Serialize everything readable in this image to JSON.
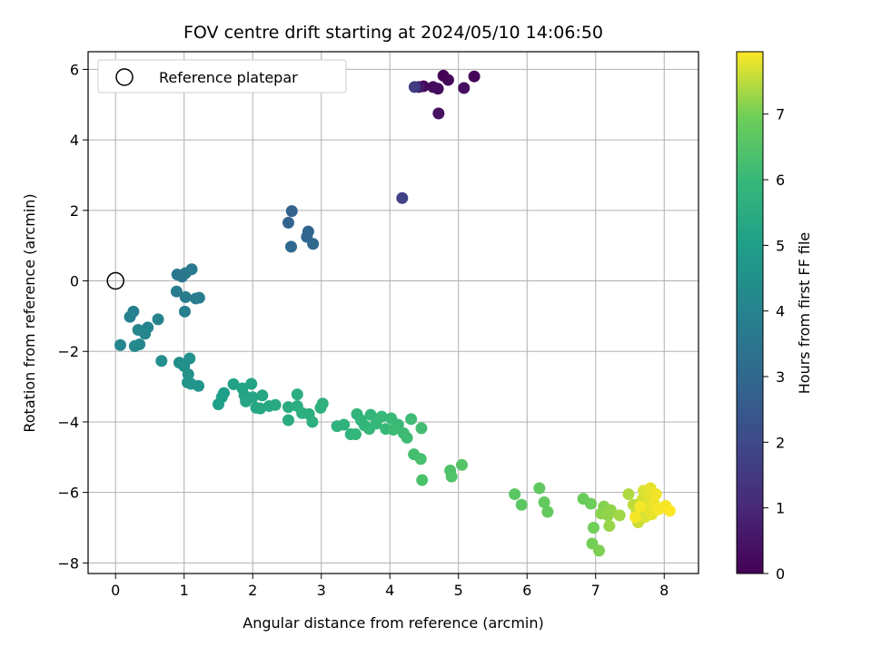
{
  "chart_data": {
    "type": "scatter",
    "title": "FOV centre drift starting at 2024/05/10 14:06:50",
    "xlabel": "Angular distance from reference (arcmin)",
    "ylabel": "Rotation from reference (arcmin)",
    "xlim": [
      -0.4,
      8.5
    ],
    "ylim": [
      -8.3,
      6.5
    ],
    "xticks": [
      0,
      1,
      2,
      3,
      4,
      5,
      6,
      7,
      8
    ],
    "yticks": [
      -8,
      -6,
      -4,
      -2,
      0,
      2,
      4,
      6
    ],
    "grid": true,
    "legend": {
      "position": "upper-left",
      "label": "Reference platepar"
    },
    "reference_point": {
      "x": 0.0,
      "y": 0.0
    },
    "colorbar": {
      "label": "Hours from first FF file",
      "colormap": "viridis",
      "range": [
        0,
        7.95
      ],
      "ticks": [
        0,
        1,
        2,
        3,
        4,
        5,
        6,
        7
      ]
    },
    "points": [
      {
        "x": 4.78,
        "y": 5.82,
        "t": 0.05
      },
      {
        "x": 5.23,
        "y": 5.8,
        "t": 0.1
      },
      {
        "x": 4.85,
        "y": 5.7,
        "t": 0.15
      },
      {
        "x": 4.49,
        "y": 5.52,
        "t": 0.2
      },
      {
        "x": 4.63,
        "y": 5.5,
        "t": 0.25
      },
      {
        "x": 4.7,
        "y": 5.45,
        "t": 0.3
      },
      {
        "x": 5.08,
        "y": 5.47,
        "t": 0.35
      },
      {
        "x": 4.42,
        "y": 5.5,
        "t": 0.6
      },
      {
        "x": 4.71,
        "y": 4.75,
        "t": 0.4
      },
      {
        "x": 4.36,
        "y": 5.5,
        "t": 1.6
      },
      {
        "x": 4.18,
        "y": 2.35,
        "t": 1.8
      },
      {
        "x": 2.57,
        "y": 1.98,
        "t": 2.8
      },
      {
        "x": 2.52,
        "y": 1.65,
        "t": 2.85
      },
      {
        "x": 2.81,
        "y": 1.4,
        "t": 2.9
      },
      {
        "x": 2.79,
        "y": 1.25,
        "t": 2.95
      },
      {
        "x": 2.88,
        "y": 1.05,
        "t": 3.0
      },
      {
        "x": 2.56,
        "y": 0.97,
        "t": 3.05
      },
      {
        "x": 0.9,
        "y": 0.18,
        "t": 3.5
      },
      {
        "x": 0.97,
        "y": 0.12,
        "t": 3.55
      },
      {
        "x": 1.02,
        "y": 0.22,
        "t": 3.6
      },
      {
        "x": 1.11,
        "y": 0.33,
        "t": 3.65
      },
      {
        "x": 0.89,
        "y": -0.3,
        "t": 3.7
      },
      {
        "x": 1.02,
        "y": -0.46,
        "t": 3.75
      },
      {
        "x": 1.17,
        "y": -0.5,
        "t": 3.8
      },
      {
        "x": 1.22,
        "y": -0.48,
        "t": 3.8
      },
      {
        "x": 1.01,
        "y": -0.87,
        "t": 3.85
      },
      {
        "x": 0.26,
        "y": -0.87,
        "t": 3.9
      },
      {
        "x": 0.21,
        "y": -1.02,
        "t": 3.95
      },
      {
        "x": 0.62,
        "y": -1.09,
        "t": 4.0
      },
      {
        "x": 0.47,
        "y": -1.32,
        "t": 4.05
      },
      {
        "x": 0.33,
        "y": -1.39,
        "t": 4.1
      },
      {
        "x": 0.43,
        "y": -1.5,
        "t": 4.1
      },
      {
        "x": 0.07,
        "y": -1.82,
        "t": 4.15
      },
      {
        "x": 0.28,
        "y": -1.85,
        "t": 4.2
      },
      {
        "x": 0.35,
        "y": -1.8,
        "t": 4.2
      },
      {
        "x": 0.67,
        "y": -2.27,
        "t": 4.4
      },
      {
        "x": 0.93,
        "y": -2.32,
        "t": 4.45
      },
      {
        "x": 1.08,
        "y": -2.2,
        "t": 4.5
      },
      {
        "x": 1.0,
        "y": -2.42,
        "t": 4.5
      },
      {
        "x": 1.06,
        "y": -2.65,
        "t": 4.55
      },
      {
        "x": 1.05,
        "y": -2.88,
        "t": 4.6
      },
      {
        "x": 1.1,
        "y": -2.92,
        "t": 4.6
      },
      {
        "x": 1.21,
        "y": -2.98,
        "t": 4.65
      },
      {
        "x": 1.72,
        "y": -2.93,
        "t": 5.1
      },
      {
        "x": 1.85,
        "y": -3.05,
        "t": 5.15
      },
      {
        "x": 1.98,
        "y": -2.92,
        "t": 5.2
      },
      {
        "x": 1.58,
        "y": -3.18,
        "t": 5.0
      },
      {
        "x": 1.55,
        "y": -3.3,
        "t": 5.0
      },
      {
        "x": 1.5,
        "y": -3.5,
        "t": 5.0
      },
      {
        "x": 1.88,
        "y": -3.25,
        "t": 5.2
      },
      {
        "x": 2.0,
        "y": -3.3,
        "t": 5.25
      },
      {
        "x": 1.9,
        "y": -3.42,
        "t": 5.25
      },
      {
        "x": 2.14,
        "y": -3.25,
        "t": 5.3
      },
      {
        "x": 2.05,
        "y": -3.6,
        "t": 5.3
      },
      {
        "x": 2.11,
        "y": -3.62,
        "t": 5.35
      },
      {
        "x": 2.24,
        "y": -3.55,
        "t": 5.35
      },
      {
        "x": 2.33,
        "y": -3.52,
        "t": 5.4
      },
      {
        "x": 2.52,
        "y": -3.58,
        "t": 5.45
      },
      {
        "x": 2.52,
        "y": -3.95,
        "t": 5.5
      },
      {
        "x": 2.65,
        "y": -3.22,
        "t": 5.55
      },
      {
        "x": 2.65,
        "y": -3.55,
        "t": 5.55
      },
      {
        "x": 2.72,
        "y": -3.75,
        "t": 5.6
      },
      {
        "x": 2.82,
        "y": -3.78,
        "t": 5.6
      },
      {
        "x": 2.87,
        "y": -4.0,
        "t": 5.65
      },
      {
        "x": 2.99,
        "y": -3.6,
        "t": 5.65
      },
      {
        "x": 3.02,
        "y": -3.48,
        "t": 5.7
      },
      {
        "x": 3.23,
        "y": -4.12,
        "t": 5.75
      },
      {
        "x": 3.33,
        "y": -4.08,
        "t": 5.75
      },
      {
        "x": 3.43,
        "y": -4.35,
        "t": 5.8
      },
      {
        "x": 3.52,
        "y": -3.78,
        "t": 5.8
      },
      {
        "x": 3.58,
        "y": -3.95,
        "t": 5.85
      },
      {
        "x": 3.63,
        "y": -4.1,
        "t": 5.85
      },
      {
        "x": 3.5,
        "y": -4.35,
        "t": 5.9
      },
      {
        "x": 3.72,
        "y": -3.8,
        "t": 5.9
      },
      {
        "x": 3.8,
        "y": -4.05,
        "t": 5.95
      },
      {
        "x": 3.7,
        "y": -4.2,
        "t": 5.95
      },
      {
        "x": 3.88,
        "y": -3.85,
        "t": 6.0
      },
      {
        "x": 3.94,
        "y": -4.2,
        "t": 6.0
      },
      {
        "x": 4.02,
        "y": -3.9,
        "t": 6.05
      },
      {
        "x": 4.12,
        "y": -4.08,
        "t": 6.05
      },
      {
        "x": 4.05,
        "y": -4.22,
        "t": 6.1
      },
      {
        "x": 4.2,
        "y": -4.32,
        "t": 6.1
      },
      {
        "x": 4.25,
        "y": -4.45,
        "t": 6.15
      },
      {
        "x": 4.31,
        "y": -3.92,
        "t": 6.15
      },
      {
        "x": 4.46,
        "y": -4.18,
        "t": 6.2
      },
      {
        "x": 4.35,
        "y": -4.92,
        "t": 6.25
      },
      {
        "x": 4.45,
        "y": -5.05,
        "t": 6.3
      },
      {
        "x": 4.47,
        "y": -5.65,
        "t": 6.35
      },
      {
        "x": 4.88,
        "y": -5.38,
        "t": 6.4
      },
      {
        "x": 4.9,
        "y": -5.55,
        "t": 6.45
      },
      {
        "x": 5.05,
        "y": -5.22,
        "t": 6.5
      },
      {
        "x": 5.82,
        "y": -6.05,
        "t": 6.6
      },
      {
        "x": 5.92,
        "y": -6.35,
        "t": 6.65
      },
      {
        "x": 6.18,
        "y": -5.88,
        "t": 6.7
      },
      {
        "x": 6.25,
        "y": -6.28,
        "t": 6.75
      },
      {
        "x": 6.3,
        "y": -6.55,
        "t": 6.8
      },
      {
        "x": 6.82,
        "y": -6.18,
        "t": 6.85
      },
      {
        "x": 6.93,
        "y": -6.32,
        "t": 6.9
      },
      {
        "x": 6.97,
        "y": -7.0,
        "t": 6.95
      },
      {
        "x": 6.95,
        "y": -7.45,
        "t": 7.0
      },
      {
        "x": 7.05,
        "y": -7.65,
        "t": 7.05
      },
      {
        "x": 7.12,
        "y": -6.4,
        "t": 7.1
      },
      {
        "x": 7.08,
        "y": -6.6,
        "t": 7.15
      },
      {
        "x": 7.18,
        "y": -6.65,
        "t": 7.2
      },
      {
        "x": 7.22,
        "y": -6.5,
        "t": 7.2
      },
      {
        "x": 7.2,
        "y": -6.95,
        "t": 7.25
      },
      {
        "x": 7.35,
        "y": -6.65,
        "t": 7.3
      },
      {
        "x": 7.48,
        "y": -6.05,
        "t": 7.4
      },
      {
        "x": 7.55,
        "y": -6.35,
        "t": 7.5
      },
      {
        "x": 7.6,
        "y": -6.55,
        "t": 7.55
      },
      {
        "x": 7.62,
        "y": -6.85,
        "t": 7.6
      },
      {
        "x": 7.68,
        "y": -6.2,
        "t": 7.65
      },
      {
        "x": 7.7,
        "y": -5.95,
        "t": 7.7
      },
      {
        "x": 7.72,
        "y": -6.7,
        "t": 7.7
      },
      {
        "x": 7.75,
        "y": -6.45,
        "t": 7.75
      },
      {
        "x": 7.78,
        "y": -6.15,
        "t": 7.75
      },
      {
        "x": 7.8,
        "y": -5.88,
        "t": 7.8
      },
      {
        "x": 7.82,
        "y": -6.62,
        "t": 7.8
      },
      {
        "x": 7.85,
        "y": -6.3,
        "t": 7.85
      },
      {
        "x": 7.88,
        "y": -6.05,
        "t": 7.85
      },
      {
        "x": 7.92,
        "y": -6.48,
        "t": 7.9
      },
      {
        "x": 8.02,
        "y": -6.38,
        "t": 7.9
      },
      {
        "x": 8.08,
        "y": -6.52,
        "t": 7.95
      },
      {
        "x": 7.65,
        "y": -6.4,
        "t": 7.9
      },
      {
        "x": 7.58,
        "y": -6.7,
        "t": 7.9
      }
    ]
  }
}
